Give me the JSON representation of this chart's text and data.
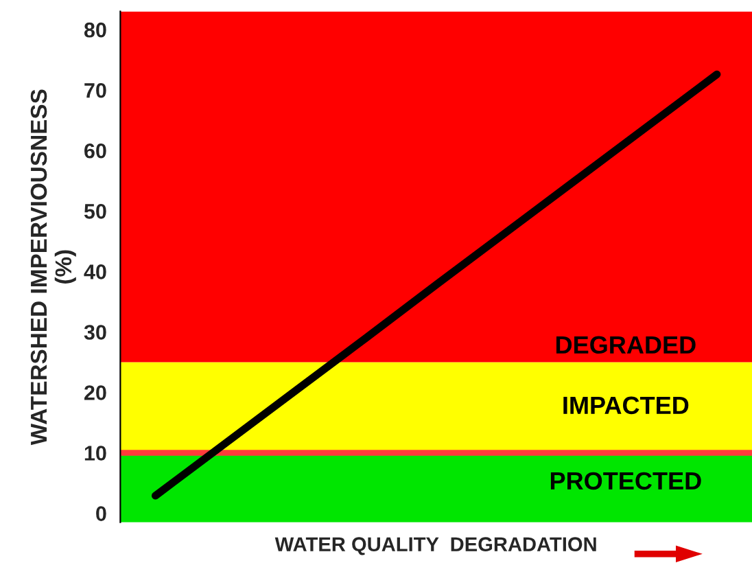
{
  "chart_data": {
    "type": "line",
    "xlabel": "WATER QUALITY  DEGRADATION",
    "ylabel": "WATERSHED IMPERVIOUSNESS\n(%)",
    "categories": [
      null,
      null,
      null,
      null,
      null,
      null,
      null,
      null,
      null
    ],
    "series": [
      {
        "color": "#000000",
        "values": [
          2.9,
          11.6,
          20.3,
          29,
          37.8,
          46.5,
          55.2,
          63.9,
          72.6
        ]
      }
    ],
    "ylim": [
      -1.5,
      83
    ],
    "yticks": [
      0,
      10,
      20,
      30,
      40,
      50,
      60,
      70,
      80
    ],
    "bands": [
      {
        "axis": "y",
        "from": -1.5,
        "to": 10,
        "label": "PROTECTED",
        "color": "#00e600"
      },
      {
        "axis": "y",
        "from": 10,
        "to": 25,
        "label": "IMPACTED",
        "color": "#ffff00"
      },
      {
        "axis": "y",
        "from": 25,
        "to": 83,
        "label": "DEGRADED",
        "color": "#ff0000"
      }
    ],
    "ref_lines": [
      {
        "axis": "y",
        "value": 10,
        "color": "#ff3b3b"
      }
    ],
    "grid": false,
    "legend": false,
    "marker": "none",
    "line_style": "solid"
  }
}
